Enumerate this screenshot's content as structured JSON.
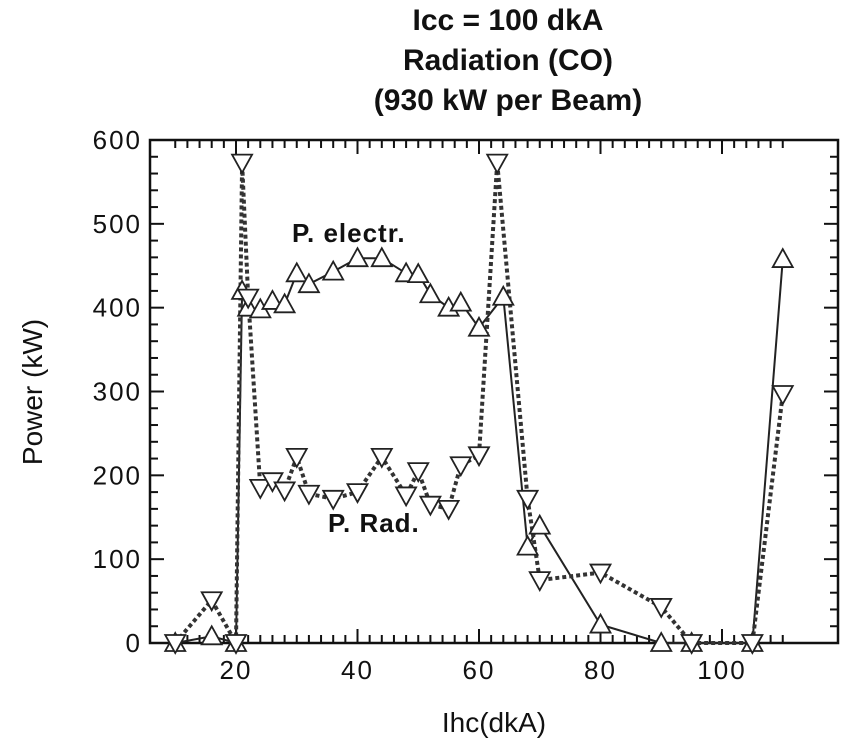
{
  "chart_data": {
    "type": "line",
    "title_lines": [
      "Icc = 100 dkA",
      "Radiation  (CO)",
      "(930 kW per Beam)"
    ],
    "xlabel": "Ihc(dkA)",
    "ylabel": "Power  (kW)",
    "xlim": [
      8,
      111
    ],
    "ylim": [
      0,
      600
    ],
    "x_ticks": [
      20,
      40,
      60,
      80,
      100
    ],
    "y_ticks": [
      0,
      100,
      200,
      300,
      400,
      500,
      600
    ],
    "grid": false,
    "annotations": [
      "P.   electr.",
      "P.   Rad."
    ],
    "series": [
      {
        "marker": "triangle-up",
        "line": "solid",
        "points": [
          [
            10,
            0
          ],
          [
            16,
            8
          ],
          [
            20,
            0
          ],
          [
            21,
            420
          ],
          [
            22,
            400
          ],
          [
            24,
            398
          ],
          [
            26,
            408
          ],
          [
            28,
            404
          ],
          [
            30,
            441
          ],
          [
            32,
            428
          ],
          [
            36,
            443
          ],
          [
            40,
            459
          ],
          [
            44,
            459
          ],
          [
            48,
            441
          ],
          [
            50,
            440
          ],
          [
            52,
            416
          ],
          [
            55,
            400
          ],
          [
            57,
            406
          ],
          [
            60,
            376
          ],
          [
            64,
            413
          ],
          [
            68,
            115
          ],
          [
            70,
            140
          ],
          [
            80,
            22
          ],
          [
            90,
            0
          ],
          [
            95,
            0
          ],
          [
            105,
            0
          ],
          [
            110,
            458
          ]
        ]
      },
      {
        "marker": "triangle-down",
        "line": "dashed",
        "points": [
          [
            10,
            0
          ],
          [
            16,
            51
          ],
          [
            20,
            0
          ],
          [
            21,
            573
          ],
          [
            22,
            412
          ],
          [
            24,
            185
          ],
          [
            26,
            193
          ],
          [
            28,
            182
          ],
          [
            30,
            222
          ],
          [
            32,
            178
          ],
          [
            36,
            172
          ],
          [
            40,
            180
          ],
          [
            44,
            222
          ],
          [
            48,
            176
          ],
          [
            50,
            205
          ],
          [
            52,
            165
          ],
          [
            55,
            160
          ],
          [
            57,
            212
          ],
          [
            60,
            224
          ],
          [
            63,
            573
          ],
          [
            68,
            172
          ],
          [
            70,
            75
          ],
          [
            80,
            84
          ],
          [
            90,
            43
          ],
          [
            95,
            0
          ],
          [
            105,
            0
          ],
          [
            110,
            297
          ]
        ]
      }
    ]
  }
}
